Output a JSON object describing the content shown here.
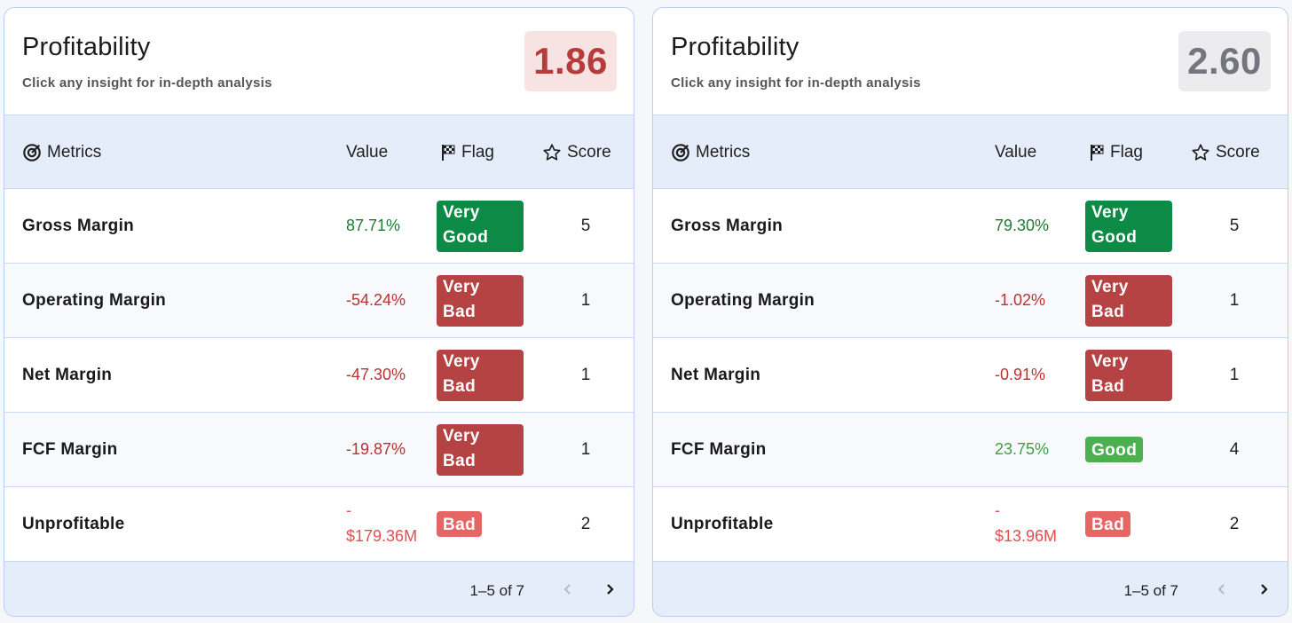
{
  "colors": {
    "very_good": "#0c8a46",
    "good": "#4caf50",
    "very_bad": "#b64343",
    "bad": "#e66565",
    "value_green": "#1f7a31",
    "value_lightgreen": "#3f9e44",
    "value_red": "#b83232",
    "value_lightred": "#e05050"
  },
  "headers": {
    "metrics": "Metrics",
    "value": "Value",
    "flag": "Flag",
    "score": "Score"
  },
  "icons": {
    "metrics": "target-icon",
    "flag": "checkered-flag-icon",
    "score": "star-outline-icon",
    "prev": "chevron-left-icon",
    "next": "chevron-right-icon"
  },
  "cards": [
    {
      "title": "Profitability",
      "subtitle": "Click any insight for in-depth analysis",
      "score": "1.86",
      "score_color": "#b63c3c",
      "score_bg": "#f7e4e2",
      "rows": [
        {
          "metric": "Gross Margin",
          "value": "87.71%",
          "value_color": "#1f7a31",
          "flag_line1": "Very",
          "flag_line2": "Good",
          "flag_color": "#0c8a46",
          "score": "5"
        },
        {
          "metric": "Operating Margin",
          "value": "-54.24%",
          "value_color": "#b83232",
          "flag_line1": "Very",
          "flag_line2": "Bad",
          "flag_color": "#b64343",
          "score": "1"
        },
        {
          "metric": "Net Margin",
          "value": "-47.30%",
          "value_color": "#b83232",
          "flag_line1": "Very",
          "flag_line2": "Bad",
          "flag_color": "#b64343",
          "score": "1"
        },
        {
          "metric": "FCF Margin",
          "value": "-19.87%",
          "value_color": "#b83232",
          "flag_line1": "Very",
          "flag_line2": "Bad",
          "flag_color": "#b64343",
          "score": "1"
        },
        {
          "metric": "Unprofitable",
          "value": "-$179.36M",
          "value_color": "#e05050",
          "flag_line1": "Bad",
          "flag_line2": "",
          "flag_color": "#e66565",
          "score": "2"
        }
      ],
      "pager": "1–5 of 7"
    },
    {
      "title": "Profitability",
      "subtitle": "Click any insight for in-depth analysis",
      "score": "2.60",
      "score_color": "#757580",
      "score_bg": "#ececef",
      "rows": [
        {
          "metric": "Gross Margin",
          "value": "79.30%",
          "value_color": "#1f7a31",
          "flag_line1": "Very",
          "flag_line2": "Good",
          "flag_color": "#0c8a46",
          "score": "5"
        },
        {
          "metric": "Operating Margin",
          "value": "-1.02%",
          "value_color": "#b83232",
          "flag_line1": "Very",
          "flag_line2": "Bad",
          "flag_color": "#b64343",
          "score": "1"
        },
        {
          "metric": "Net Margin",
          "value": "-0.91%",
          "value_color": "#b83232",
          "flag_line1": "Very",
          "flag_line2": "Bad",
          "flag_color": "#b64343",
          "score": "1"
        },
        {
          "metric": "FCF Margin",
          "value": "23.75%",
          "value_color": "#3f9e44",
          "flag_line1": "Good",
          "flag_line2": "",
          "flag_color": "#4caf50",
          "score": "4"
        },
        {
          "metric": "Unprofitable",
          "value": "-$13.96M",
          "value_color": "#e05050",
          "flag_line1": "Bad",
          "flag_line2": "",
          "flag_color": "#e66565",
          "score": "2"
        }
      ],
      "pager": "1–5 of 7"
    }
  ]
}
